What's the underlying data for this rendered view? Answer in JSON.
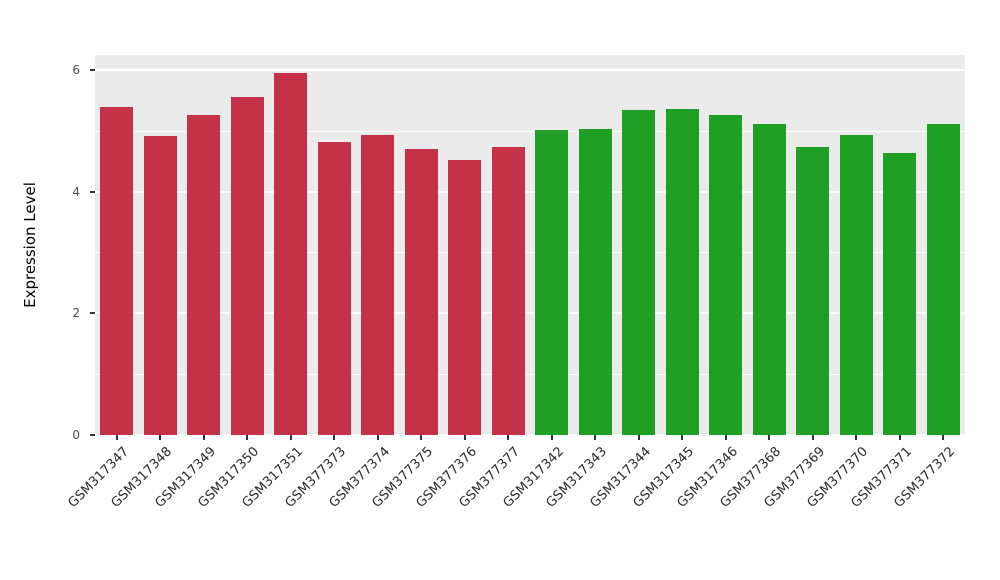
{
  "chart_data": {
    "type": "bar",
    "title": "",
    "xlabel": "",
    "ylabel": "Expression Level",
    "categories": [
      "GSM317347",
      "GSM317348",
      "GSM317349",
      "GSM317350",
      "GSM317351",
      "GSM377373",
      "GSM377374",
      "GSM377375",
      "GSM377376",
      "GSM377377",
      "GSM317342",
      "GSM317343",
      "GSM317344",
      "GSM317345",
      "GSM317346",
      "GSM377368",
      "GSM377369",
      "GSM377370",
      "GSM377371",
      "GSM377372"
    ],
    "values": [
      5.4,
      4.92,
      5.26,
      5.56,
      5.95,
      4.82,
      4.94,
      4.7,
      4.53,
      4.74,
      5.01,
      5.04,
      5.34,
      5.37,
      5.27,
      5.11,
      4.74,
      4.94,
      4.64,
      5.12
    ],
    "colors": [
      "#C53148",
      "#C53148",
      "#C53148",
      "#C53148",
      "#C53148",
      "#C53148",
      "#C53148",
      "#C53148",
      "#C53148",
      "#C53148",
      "#1FA024",
      "#1FA024",
      "#1FA024",
      "#1FA024",
      "#1FA024",
      "#1FA024",
      "#1FA024",
      "#1FA024",
      "#1FA024",
      "#1FA024"
    ],
    "group_colors": {
      "left_group_red": "#C53148",
      "right_group_green": "#1FA024"
    },
    "ylim": [
      0,
      6.25
    ],
    "yticks": [
      0,
      2,
      4,
      6
    ],
    "ytick_labels": [
      "0",
      "2",
      "4",
      "6"
    ],
    "yticks_minor": [
      1,
      3,
      5
    ],
    "grid": true,
    "panel_background": "#EBEBEB",
    "grid_color": "#FFFFFF",
    "legend": "none"
  }
}
